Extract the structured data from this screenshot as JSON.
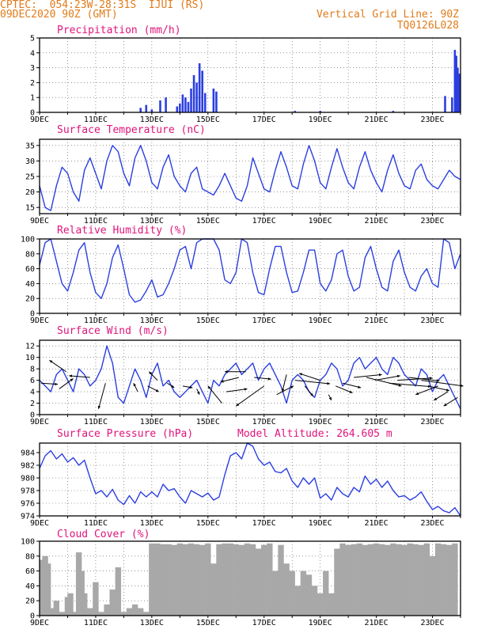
{
  "header": {
    "line1": "CPTEC:  054:23W-28:31S  IJUI (RS)",
    "line2": "09DEC2020 90Z (GMT)",
    "grid_line": "Vertical Grid Line: 90Z",
    "run_id": "TQ0126L028"
  },
  "colors": {
    "header": "#e07b1a",
    "title": "#e0147a",
    "series": "#2b3fe0",
    "cloud": "#a8a8a8",
    "grid": "#555555"
  },
  "x_tick_labels": [
    "9DEC",
    "11DEC",
    "13DEC",
    "15DEC",
    "17DEC",
    "19DEC",
    "21DEC",
    "23DEC"
  ],
  "x_range_days": [
    9,
    24
  ],
  "panels": {
    "precip": {
      "title": "Precipitation (mm/h)"
    },
    "temp": {
      "title": "Surface Temperature (nC)"
    },
    "rh": {
      "title": "Relative Humidity (%)"
    },
    "wind": {
      "title": "Surface Wind (m/s)"
    },
    "pres": {
      "title": "Surface Pressure (hPa)",
      "model_altitude": "Model Altitude: 264.605 m"
    },
    "cloud": {
      "title": "Cloud Cover (%)"
    }
  },
  "chart_data": [
    {
      "type": "bar",
      "name": "precip",
      "title": "Precipitation (mm/h)",
      "ylim": [
        0,
        5
      ],
      "yticks": [
        0,
        1,
        2,
        3,
        4,
        5
      ],
      "x": [
        12.6,
        12.8,
        13.0,
        13.3,
        13.5,
        13.9,
        14.0,
        14.1,
        14.2,
        14.3,
        14.4,
        14.5,
        14.6,
        14.7,
        14.8,
        14.9,
        15.2,
        15.3,
        18.1,
        19.0,
        21.6,
        23.45,
        23.7,
        23.8,
        23.85,
        23.9,
        23.95
      ],
      "values": [
        0.3,
        0.5,
        0.2,
        0.8,
        1.0,
        0.4,
        0.6,
        1.2,
        1.0,
        0.7,
        1.6,
        2.5,
        2.0,
        3.3,
        2.8,
        1.3,
        1.6,
        1.4,
        0.1,
        0.1,
        0.1,
        1.1,
        1.0,
        4.2,
        3.8,
        3.0,
        2.6
      ]
    },
    {
      "type": "line",
      "name": "temp",
      "title": "Surface Temperature (nC)",
      "ylim": [
        13,
        37
      ],
      "yticks": [
        15,
        20,
        25,
        30,
        35
      ],
      "x": [
        9.0,
        9.2,
        9.4,
        9.6,
        9.8,
        10.0,
        10.2,
        10.4,
        10.6,
        10.8,
        11.0,
        11.2,
        11.4,
        11.6,
        11.8,
        12.0,
        12.2,
        12.4,
        12.6,
        12.8,
        13.0,
        13.2,
        13.4,
        13.6,
        13.8,
        14.0,
        14.2,
        14.4,
        14.6,
        14.8,
        15.0,
        15.2,
        15.4,
        15.6,
        15.8,
        16.0,
        16.2,
        16.4,
        16.6,
        16.8,
        17.0,
        17.2,
        17.4,
        17.6,
        17.8,
        18.0,
        18.2,
        18.4,
        18.6,
        18.8,
        19.0,
        19.2,
        19.4,
        19.6,
        19.8,
        20.0,
        20.2,
        20.4,
        20.6,
        20.8,
        21.0,
        21.2,
        21.4,
        21.6,
        21.8,
        22.0,
        22.2,
        22.4,
        22.6,
        22.8,
        23.0,
        23.2,
        23.4,
        23.6,
        23.8,
        24.0
      ],
      "values": [
        22,
        15,
        14,
        22,
        28,
        26,
        20,
        17,
        27,
        31,
        26,
        21,
        30,
        35,
        33,
        26,
        22,
        31,
        35,
        30,
        23,
        21,
        28,
        32,
        25,
        22,
        20,
        26,
        28,
        21,
        20,
        19,
        22,
        26,
        22,
        18,
        17,
        22,
        31,
        26,
        21,
        20,
        27,
        33,
        28,
        22,
        21,
        29,
        35,
        30,
        23,
        21,
        28,
        34,
        28,
        23,
        21,
        28,
        33,
        27,
        23,
        20,
        27,
        32,
        26,
        22,
        21,
        27,
        29,
        24,
        22,
        21,
        24,
        27,
        25,
        24
      ]
    },
    {
      "type": "line",
      "name": "rh",
      "title": "Relative Humidity (%)",
      "ylim": [
        0,
        100
      ],
      "yticks": [
        0,
        20,
        40,
        60,
        80,
        100
      ],
      "x": [
        9.0,
        9.2,
        9.4,
        9.6,
        9.8,
        10.0,
        10.2,
        10.4,
        10.6,
        10.8,
        11.0,
        11.2,
        11.4,
        11.6,
        11.8,
        12.0,
        12.2,
        12.4,
        12.6,
        12.8,
        13.0,
        13.2,
        13.4,
        13.6,
        13.8,
        14.0,
        14.2,
        14.4,
        14.6,
        14.8,
        15.0,
        15.2,
        15.4,
        15.6,
        15.8,
        16.0,
        16.2,
        16.4,
        16.6,
        16.8,
        17.0,
        17.2,
        17.4,
        17.6,
        17.8,
        18.0,
        18.2,
        18.4,
        18.6,
        18.8,
        19.0,
        19.2,
        19.4,
        19.6,
        19.8,
        20.0,
        20.2,
        20.4,
        20.6,
        20.8,
        21.0,
        21.2,
        21.4,
        21.6,
        21.8,
        22.0,
        22.2,
        22.4,
        22.6,
        22.8,
        23.0,
        23.2,
        23.4,
        23.6,
        23.8,
        24.0
      ],
      "values": [
        65,
        95,
        100,
        70,
        40,
        30,
        55,
        85,
        95,
        55,
        28,
        20,
        40,
        75,
        92,
        60,
        25,
        15,
        18,
        30,
        45,
        22,
        25,
        40,
        60,
        85,
        90,
        60,
        95,
        100,
        100,
        100,
        85,
        45,
        40,
        55,
        100,
        95,
        55,
        28,
        25,
        60,
        90,
        90,
        55,
        28,
        30,
        55,
        85,
        85,
        40,
        30,
        45,
        80,
        85,
        50,
        30,
        35,
        75,
        90,
        60,
        35,
        30,
        70,
        85,
        55,
        35,
        30,
        50,
        60,
        40,
        35,
        100,
        95,
        60,
        80
      ]
    },
    {
      "type": "line",
      "name": "wind",
      "title": "Surface Wind (m/s)",
      "ylim": [
        0,
        13
      ],
      "yticks": [
        0,
        2,
        4,
        6,
        8,
        10,
        12
      ],
      "x": [
        9.0,
        9.2,
        9.4,
        9.6,
        9.8,
        10.0,
        10.2,
        10.4,
        10.6,
        10.8,
        11.0,
        11.2,
        11.4,
        11.6,
        11.8,
        12.0,
        12.2,
        12.4,
        12.6,
        12.8,
        13.0,
        13.2,
        13.4,
        13.6,
        13.8,
        14.0,
        14.2,
        14.4,
        14.6,
        14.8,
        15.0,
        15.2,
        15.4,
        15.6,
        15.8,
        16.0,
        16.2,
        16.4,
        16.6,
        16.8,
        17.0,
        17.2,
        17.4,
        17.6,
        17.8,
        18.0,
        18.2,
        18.4,
        18.6,
        18.8,
        19.0,
        19.2,
        19.4,
        19.6,
        19.8,
        20.0,
        20.2,
        20.4,
        20.6,
        20.8,
        21.0,
        21.2,
        21.4,
        21.6,
        21.8,
        22.0,
        22.2,
        22.4,
        22.6,
        22.8,
        23.0,
        23.2,
        23.4,
        23.6,
        23.8,
        24.0
      ],
      "values": [
        6,
        5,
        4,
        7,
        8,
        6,
        4,
        8,
        7,
        5,
        6,
        8,
        12,
        9,
        3,
        2,
        5,
        8,
        6,
        3,
        7,
        9,
        5,
        6,
        4,
        3,
        4,
        5,
        6,
        4,
        2,
        6,
        5,
        7,
        8,
        9,
        7,
        8,
        9,
        6,
        8,
        9,
        7,
        5,
        2,
        6,
        7,
        6,
        4,
        3,
        6,
        7,
        9,
        8,
        5,
        6,
        9,
        10,
        8,
        9,
        10,
        8,
        7,
        10,
        9,
        7,
        6,
        5,
        8,
        7,
        4,
        6,
        7,
        5,
        3,
        1
      ]
    },
    {
      "type": "line",
      "name": "pres",
      "title": "Surface Pressure (hPa)",
      "ylim": [
        974,
        985.5
      ],
      "yticks": [
        974,
        976,
        978,
        980,
        982,
        984
      ],
      "x": [
        9.0,
        9.2,
        9.4,
        9.6,
        9.8,
        10.0,
        10.2,
        10.4,
        10.6,
        10.8,
        11.0,
        11.2,
        11.4,
        11.6,
        11.8,
        12.0,
        12.2,
        12.4,
        12.6,
        12.8,
        13.0,
        13.2,
        13.4,
        13.6,
        13.8,
        14.0,
        14.2,
        14.4,
        14.6,
        14.8,
        15.0,
        15.2,
        15.4,
        15.6,
        15.8,
        16.0,
        16.2,
        16.4,
        16.6,
        16.8,
        17.0,
        17.2,
        17.4,
        17.6,
        17.8,
        18.0,
        18.2,
        18.4,
        18.6,
        18.8,
        19.0,
        19.2,
        19.4,
        19.6,
        19.8,
        20.0,
        20.2,
        20.4,
        20.6,
        20.8,
        21.0,
        21.2,
        21.4,
        21.6,
        21.8,
        22.0,
        22.2,
        22.4,
        22.6,
        22.8,
        23.0,
        23.2,
        23.4,
        23.6,
        23.8,
        24.0
      ],
      "values": [
        981.5,
        983.5,
        984.3,
        983.0,
        983.8,
        982.5,
        983.2,
        982.0,
        982.8,
        980.0,
        977.5,
        978.0,
        977.0,
        978.2,
        976.5,
        975.8,
        977.2,
        976.0,
        977.8,
        977.0,
        977.8,
        977.0,
        979.0,
        978.0,
        978.3,
        977.0,
        976.0,
        978.0,
        977.5,
        977.0,
        977.6,
        976.5,
        977.0,
        980.5,
        983.5,
        984.0,
        983.0,
        985.5,
        985.0,
        983.0,
        982.0,
        982.5,
        981.0,
        980.8,
        981.5,
        979.5,
        978.5,
        980.0,
        979.0,
        980.0,
        976.8,
        977.5,
        976.5,
        978.5,
        977.5,
        977.0,
        978.5,
        977.8,
        980.3,
        979.0,
        979.8,
        978.5,
        979.5,
        978.0,
        977.0,
        977.2,
        976.5,
        977.0,
        977.8,
        976.3,
        975.0,
        975.5,
        974.8,
        974.5,
        975.3,
        974.0
      ]
    },
    {
      "type": "bar",
      "name": "cloud",
      "title": "Cloud Cover (%)",
      "ylim": [
        0,
        100
      ],
      "yticks": [
        0,
        20,
        40,
        60,
        80,
        100
      ],
      "x": [
        9.1,
        9.2,
        9.3,
        9.5,
        9.6,
        9.8,
        10.0,
        10.1,
        10.3,
        10.4,
        10.5,
        10.6,
        10.8,
        11.0,
        11.2,
        11.4,
        11.6,
        11.8,
        12.0,
        12.2,
        12.4,
        12.6,
        12.8,
        13.0,
        13.2,
        13.4,
        13.6,
        13.8,
        14.0,
        14.2,
        14.4,
        14.6,
        14.8,
        15.0,
        15.2,
        15.4,
        15.6,
        15.8,
        16.0,
        16.2,
        16.4,
        16.6,
        16.8,
        17.0,
        17.2,
        17.4,
        17.6,
        17.8,
        18.0,
        18.2,
        18.4,
        18.6,
        18.8,
        19.0,
        19.2,
        19.4,
        19.6,
        19.8,
        20.0,
        20.2,
        20.4,
        20.6,
        20.8,
        21.0,
        21.2,
        21.4,
        21.6,
        21.8,
        22.0,
        22.2,
        22.4,
        22.6,
        22.8,
        23.0,
        23.2,
        23.4,
        23.6,
        23.8
      ],
      "values": [
        75,
        80,
        70,
        10,
        20,
        5,
        25,
        30,
        5,
        85,
        60,
        30,
        10,
        45,
        5,
        15,
        35,
        65,
        5,
        10,
        15,
        10,
        5,
        97,
        97,
        96,
        96,
        95,
        97,
        96,
        97,
        96,
        95,
        97,
        70,
        96,
        97,
        97,
        96,
        95,
        97,
        96,
        90,
        95,
        97,
        60,
        95,
        70,
        60,
        40,
        60,
        55,
        40,
        30,
        60,
        30,
        90,
        97,
        95,
        96,
        97,
        95,
        96,
        97,
        96,
        95,
        97,
        96,
        95,
        97,
        96,
        95,
        97,
        80,
        97,
        96,
        95,
        97
      ]
    }
  ],
  "wind_vectors": {
    "x": [
      9.05,
      9.7,
      9.95,
      10.8,
      11.35,
      12.5,
      12.85,
      13.2,
      13.55,
      14.1,
      14.6,
      15.5,
      15.65,
      16.1,
      16.35,
      16.65,
      17.0,
      17.45,
      17.8,
      18.1,
      18.45,
      19.0,
      19.3,
      19.55,
      19.8,
      20.2,
      20.65,
      20.95,
      21.45,
      21.75,
      22.15,
      22.6,
      22.85,
      23.2,
      23.55,
      23.9
    ],
    "y": [
      5.5,
      4.5,
      7.5,
      6.5,
      5.5,
      4.0,
      5.0,
      6.0,
      5.5,
      5.0,
      4.5,
      2.0,
      4.0,
      6.5,
      7.5,
      6.5,
      5.0,
      3.5,
      7.0,
      6.0,
      5.0,
      6.0,
      3.5,
      5.0,
      5.5,
      6.5,
      6.5,
      6.0,
      5.5,
      6.0,
      6.5,
      6.0,
      5.0,
      5.0,
      4.0,
      3.0
    ],
    "u": [
      1.2,
      1.0,
      -1.2,
      -1.5,
      -0.5,
      -0.3,
      0.8,
      -0.6,
      0.5,
      0.7,
      0.2,
      -1.0,
      1.5,
      -1.3,
      -1.5,
      1.2,
      -2.0,
      1.2,
      -0.3,
      2.5,
      0.6,
      -1.5,
      0.2,
      1.2,
      1.3,
      2.0,
      2.5,
      1.8,
      3.0,
      2.5,
      2.2,
      3.0,
      1.5,
      -1.6,
      -1.0,
      -1.0
    ],
    "v": [
      -0.2,
      1.8,
      2.0,
      0.3,
      -4.5,
      1.5,
      -1.0,
      1.5,
      -0.8,
      -0.3,
      -1.0,
      3.0,
      0.5,
      -0.8,
      0.0,
      -0.3,
      -3.5,
      1.5,
      -3.0,
      -0.6,
      -1.8,
      1.2,
      -1.0,
      -1.2,
      -0.8,
      0.5,
      -1.5,
      0.8,
      -0.6,
      0.4,
      -0.6,
      -1.0,
      -0.8,
      -1.5,
      -1.5,
      -1.5
    ]
  }
}
